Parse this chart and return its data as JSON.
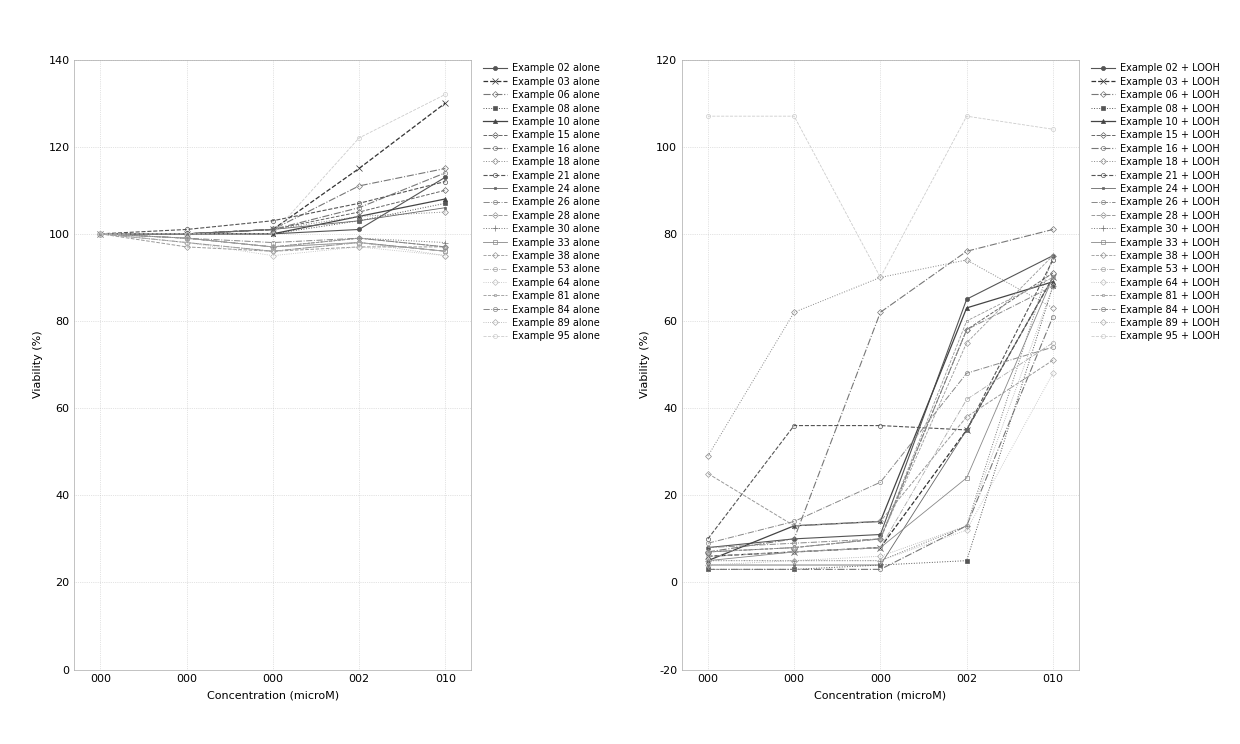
{
  "x_labels": [
    "000",
    "000",
    "000",
    "002",
    "010"
  ],
  "x_values": [
    0,
    1,
    2,
    3,
    4
  ],
  "left_ylabel": "Viability (%)",
  "right_ylabel": "Viability (%)",
  "xlabel": "Concentration (microM)",
  "left_ylim": [
    0,
    140
  ],
  "right_ylim": [
    -20,
    120
  ],
  "left_yticks": [
    0,
    20,
    40,
    60,
    80,
    100,
    120,
    140
  ],
  "right_yticks": [
    -20,
    0,
    20,
    40,
    60,
    80,
    100,
    120
  ],
  "series_names": [
    "02",
    "03",
    "06",
    "08",
    "10",
    "15",
    "16",
    "18",
    "21",
    "24",
    "26",
    "28",
    "30",
    "33",
    "38",
    "53",
    "64",
    "81",
    "84",
    "89",
    "95"
  ],
  "alone_data": {
    "02": [
      100,
      100,
      100,
      101,
      113
    ],
    "03": [
      100,
      100,
      101,
      115,
      130
    ],
    "06": [
      100,
      100,
      101,
      111,
      115
    ],
    "08": [
      100,
      100,
      100,
      103,
      107
    ],
    "10": [
      100,
      100,
      100,
      104,
      108
    ],
    "15": [
      100,
      100,
      101,
      105,
      110
    ],
    "16": [
      100,
      100,
      101,
      106,
      114
    ],
    "18": [
      100,
      100,
      101,
      104,
      105
    ],
    "21": [
      100,
      101,
      103,
      107,
      112
    ],
    "24": [
      100,
      100,
      101,
      103,
      106
    ],
    "26": [
      100,
      98,
      96,
      98,
      96
    ],
    "28": [
      100,
      97,
      96,
      97,
      97
    ],
    "30": [
      100,
      99,
      97,
      99,
      98
    ],
    "33": [
      100,
      99,
      97,
      98,
      96
    ],
    "38": [
      100,
      99,
      97,
      99,
      97
    ],
    "53": [
      100,
      98,
      96,
      98,
      96
    ],
    "64": [
      100,
      98,
      95,
      97,
      95
    ],
    "81": [
      100,
      99,
      97,
      99,
      97
    ],
    "84": [
      100,
      99,
      98,
      99,
      97
    ],
    "89": [
      100,
      99,
      97,
      98,
      95
    ],
    "95": [
      100,
      100,
      100,
      122,
      132
    ]
  },
  "looh_data": {
    "02": [
      8,
      10,
      11,
      65,
      75
    ],
    "03": [
      6,
      7,
      8,
      35,
      70
    ],
    "06": [
      7,
      10,
      62,
      76,
      81
    ],
    "08": [
      3,
      3,
      4,
      5,
      68
    ],
    "10": [
      5,
      13,
      14,
      63,
      69
    ],
    "15": [
      7,
      8,
      10,
      58,
      71
    ],
    "16": [
      3,
      3,
      3,
      13,
      61
    ],
    "18": [
      29,
      62,
      70,
      74,
      63
    ],
    "21": [
      10,
      36,
      36,
      35,
      74
    ],
    "24": [
      4,
      4,
      4,
      35,
      70
    ],
    "26": [
      9,
      14,
      23,
      48,
      54
    ],
    "28": [
      25,
      13,
      14,
      38,
      51
    ],
    "30": [
      5,
      5,
      5,
      13,
      75
    ],
    "33": [
      5,
      7,
      8,
      24,
      70
    ],
    "38": [
      7,
      8,
      10,
      55,
      75
    ],
    "53": [
      6,
      7,
      8,
      42,
      55
    ],
    "64": [
      5,
      5,
      5,
      12,
      48
    ],
    "81": [
      7,
      8,
      10,
      60,
      70
    ],
    "84": [
      8,
      9,
      10,
      58,
      68
    ],
    "89": [
      4,
      5,
      6,
      13,
      68
    ],
    "95": [
      107,
      107,
      70,
      107,
      104
    ]
  },
  "line_styles": {
    "02": {
      "color": "#555555",
      "linestyle": "-",
      "marker": "o",
      "ms": 3,
      "lw": 0.8,
      "mfc": "#555555"
    },
    "03": {
      "color": "#333333",
      "linestyle": "--",
      "marker": "x",
      "ms": 4,
      "lw": 0.9,
      "mfc": "#333333"
    },
    "06": {
      "color": "#777777",
      "linestyle": "-.",
      "marker": "D",
      "ms": 3,
      "lw": 0.8,
      "mfc": "none"
    },
    "08": {
      "color": "#555555",
      "linestyle": ":",
      "marker": "s",
      "ms": 3,
      "lw": 0.7,
      "mfc": "#555555"
    },
    "10": {
      "color": "#444444",
      "linestyle": "-",
      "marker": "^",
      "ms": 3,
      "lw": 0.9,
      "mfc": "#444444"
    },
    "15": {
      "color": "#666666",
      "linestyle": "--",
      "marker": "D",
      "ms": 3,
      "lw": 0.7,
      "mfc": "none"
    },
    "16": {
      "color": "#777777",
      "linestyle": "-.",
      "marker": "o",
      "ms": 3,
      "lw": 0.8,
      "mfc": "none"
    },
    "18": {
      "color": "#888888",
      "linestyle": ":",
      "marker": "D",
      "ms": 3,
      "lw": 0.7,
      "mfc": "none"
    },
    "21": {
      "color": "#555555",
      "linestyle": "--",
      "marker": "o",
      "ms": 3,
      "lw": 0.8,
      "mfc": "none"
    },
    "24": {
      "color": "#666666",
      "linestyle": "-",
      "marker": "s",
      "ms": 2,
      "lw": 0.6,
      "mfc": "#666666"
    },
    "26": {
      "color": "#888888",
      "linestyle": "-.",
      "marker": "o",
      "ms": 3,
      "lw": 0.7,
      "mfc": "none"
    },
    "28": {
      "color": "#999999",
      "linestyle": "--",
      "marker": "D",
      "ms": 3,
      "lw": 0.7,
      "mfc": "none"
    },
    "30": {
      "color": "#777777",
      "linestyle": ":",
      "marker": "+",
      "ms": 4,
      "lw": 0.7,
      "mfc": "#777777"
    },
    "33": {
      "color": "#888888",
      "linestyle": "-",
      "marker": "s",
      "ms": 3,
      "lw": 0.6,
      "mfc": "none"
    },
    "38": {
      "color": "#999999",
      "linestyle": "--",
      "marker": "D",
      "ms": 3,
      "lw": 0.6,
      "mfc": "none"
    },
    "53": {
      "color": "#aaaaaa",
      "linestyle": "-.",
      "marker": "o",
      "ms": 3,
      "lw": 0.6,
      "mfc": "none"
    },
    "64": {
      "color": "#bbbbbb",
      "linestyle": ":",
      "marker": "D",
      "ms": 3,
      "lw": 0.6,
      "mfc": "none"
    },
    "81": {
      "color": "#999999",
      "linestyle": "--",
      "marker": "s",
      "ms": 2,
      "lw": 0.6,
      "mfc": "none"
    },
    "84": {
      "color": "#888888",
      "linestyle": "-.",
      "marker": "o",
      "ms": 3,
      "lw": 0.7,
      "mfc": "none"
    },
    "89": {
      "color": "#aaaaaa",
      "linestyle": ":",
      "marker": "D",
      "ms": 3,
      "lw": 0.6,
      "mfc": "none"
    },
    "95": {
      "color": "#cccccc",
      "linestyle": "--",
      "marker": "o",
      "ms": 3,
      "lw": 0.6,
      "mfc": "none"
    }
  },
  "background_color": "#ffffff",
  "grid_color": "#bbbbbb",
  "legend_fontsize": 7,
  "axis_fontsize": 8,
  "tick_fontsize": 8
}
